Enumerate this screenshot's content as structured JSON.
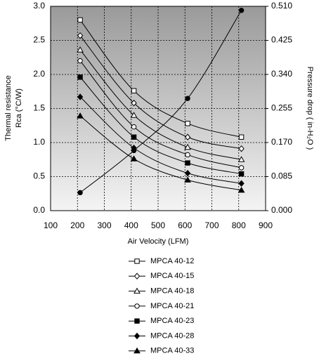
{
  "chart_data": {
    "type": "line",
    "xlabel": "Air Velocity (LFM)",
    "ylabel": [
      "Thermal resistance",
      "Rca (°C/W)"
    ],
    "y2label": "Pressure drop  ( in-H₂O )",
    "xlim": [
      100,
      900
    ],
    "xticks": [
      100,
      200,
      300,
      400,
      500,
      600,
      700,
      800,
      900
    ],
    "ylim": [
      0,
      3
    ],
    "yticks": [
      {
        "value": 0,
        "label": "0.0"
      },
      {
        "value": 0.5,
        "label": "0.5"
      },
      {
        "value": 1,
        "label": "1.0"
      },
      {
        "value": 1.5,
        "label": "1.5"
      },
      {
        "value": 2,
        "label": "2.0"
      },
      {
        "value": 2.5,
        "label": "2.5"
      },
      {
        "value": 3,
        "label": "3.0"
      }
    ],
    "y2lim": [
      0,
      0.51
    ],
    "y2ticks": [
      {
        "value": 0,
        "label": "0.000"
      },
      {
        "value": 0.085,
        "label": "0.085"
      },
      {
        "value": 0.17,
        "label": "0.170"
      },
      {
        "value": 0.255,
        "label": "0.255"
      },
      {
        "value": 0.34,
        "label": "0.340"
      },
      {
        "value": 0.425,
        "label": "0.425"
      },
      {
        "value": 0.51,
        "label": "0.510"
      }
    ],
    "grid": true,
    "x": [
      210,
      410,
      610,
      810
    ],
    "series": [
      {
        "name": "MPCA 40-12",
        "color": "#000000",
        "marker": "square",
        "marker_fill": "#ffffff",
        "values": [
          2.8,
          1.76,
          1.28,
          1.08
        ]
      },
      {
        "name": "MPCA 40-15",
        "color": "#000000",
        "marker": "diamond",
        "marker_fill": "#ffffff",
        "values": [
          2.57,
          1.58,
          1.08,
          0.91
        ]
      },
      {
        "name": "MPCA 40-18",
        "color": "#000000",
        "marker": "triangle",
        "marker_fill": "#ffffff",
        "values": [
          2.36,
          1.4,
          0.93,
          0.75
        ]
      },
      {
        "name": "MPCA 40-21",
        "color": "#000000",
        "marker": "circle",
        "marker_fill": "#ffffff",
        "values": [
          2.2,
          1.23,
          0.82,
          0.63
        ]
      },
      {
        "name": "MPCA 40-23",
        "color": "#000000",
        "marker": "square",
        "marker_fill": "#000000",
        "values": [
          1.96,
          1.08,
          0.7,
          0.54
        ]
      },
      {
        "name": "MPCA 40-28",
        "color": "#000000",
        "marker": "diamond",
        "marker_fill": "#000000",
        "values": [
          1.67,
          0.92,
          0.55,
          0.4
        ]
      },
      {
        "name": "MPCA 40-33",
        "color": "#000000",
        "marker": "triangle",
        "marker_fill": "#000000",
        "values": [
          1.39,
          0.76,
          0.45,
          0.3
        ]
      },
      {
        "axis": "y2",
        "color": "#000000",
        "marker": "circle",
        "marker_fill": "#000000",
        "values": [
          0.045,
          0.15,
          0.28,
          0.5
        ]
      }
    ]
  }
}
